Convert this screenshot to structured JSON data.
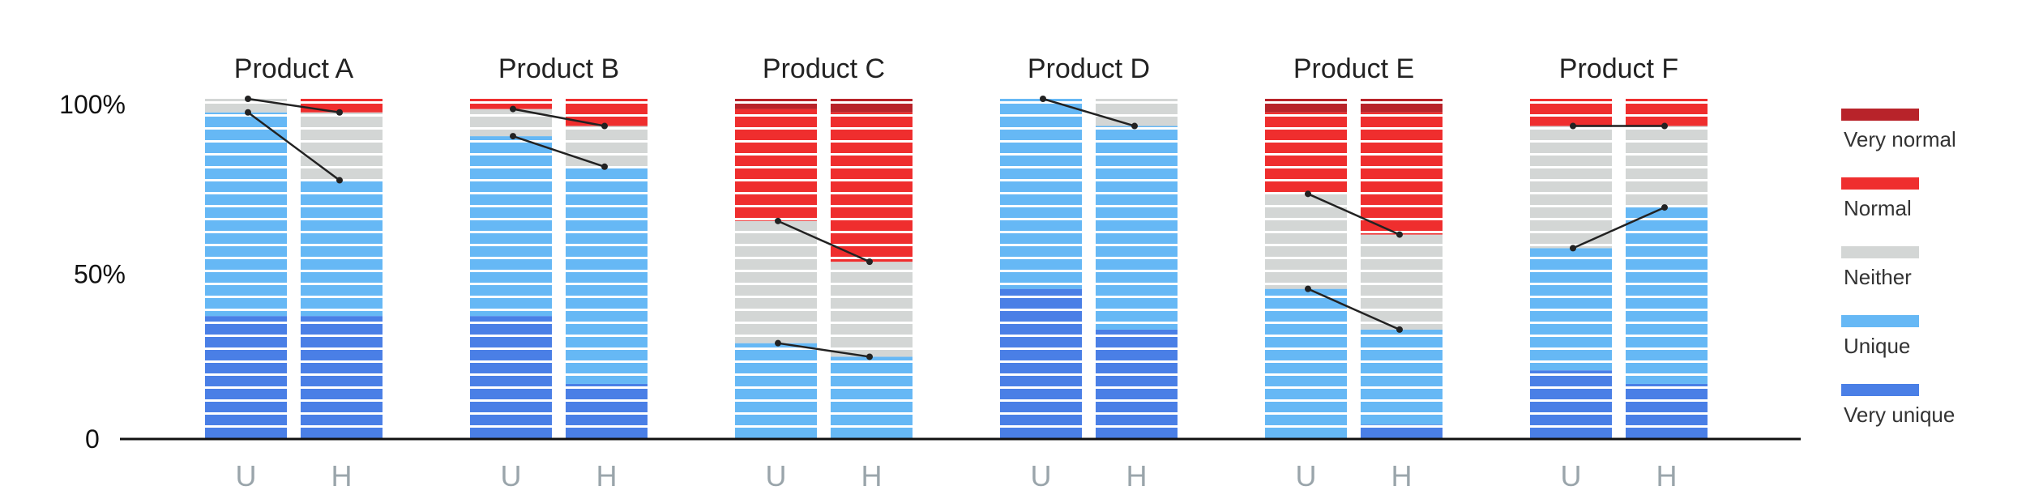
{
  "chart_data": {
    "type": "bar",
    "stacked": true,
    "colors": {
      "very_unique": "#4a7fe6",
      "unique": "#66b8f5",
      "neither": "#d3d6d5",
      "normal": "#ef2e2e",
      "very_normal": "#b8232a",
      "connector": "#222222",
      "stripe": "#ffffff"
    },
    "y_ticks": [
      {
        "value": 0,
        "label": "0"
      },
      {
        "value": 50,
        "label": "50%"
      },
      {
        "value": 100,
        "label": "100%"
      }
    ],
    "ylim": [
      0,
      100
    ],
    "legend": [
      {
        "key": "very_normal",
        "label": "Very normal"
      },
      {
        "key": "normal",
        "label": "Normal"
      },
      {
        "key": "neither",
        "label": "Neither"
      },
      {
        "key": "unique",
        "label": "Unique"
      },
      {
        "key": "very_unique",
        "label": "Very unique"
      }
    ],
    "products": [
      {
        "name": "Product A",
        "bars": [
          {
            "label": "U",
            "very_unique": 36,
            "unique": 60,
            "neither": 4,
            "normal": 0,
            "very_normal": 0
          },
          {
            "label": "H",
            "very_unique": 36,
            "unique": 40,
            "neither": 20,
            "normal": 4,
            "very_normal": 0
          }
        ]
      },
      {
        "name": "Product B",
        "bars": [
          {
            "label": "U",
            "very_unique": 36,
            "unique": 53,
            "neither": 8,
            "normal": 3,
            "very_normal": 0
          },
          {
            "label": "H",
            "very_unique": 16,
            "unique": 64,
            "neither": 12,
            "normal": 8,
            "very_normal": 0
          }
        ]
      },
      {
        "name": "Product C",
        "bars": [
          {
            "label": "U",
            "very_unique": 0,
            "unique": 28,
            "neither": 36,
            "normal": 33,
            "very_normal": 3
          },
          {
            "label": "H",
            "very_unique": 0,
            "unique": 24,
            "neither": 28,
            "normal": 44,
            "very_normal": 4
          }
        ]
      },
      {
        "name": "Product D",
        "bars": [
          {
            "label": "U",
            "very_unique": 44,
            "unique": 56,
            "neither": 0,
            "normal": 0,
            "very_normal": 0
          },
          {
            "label": "H",
            "very_unique": 32,
            "unique": 60,
            "neither": 8,
            "normal": 0,
            "very_normal": 0
          }
        ]
      },
      {
        "name": "Product E",
        "bars": [
          {
            "label": "U",
            "very_unique": 0,
            "unique": 44,
            "neither": 28,
            "normal": 24,
            "very_normal": 4
          },
          {
            "label": "H",
            "very_unique": 4,
            "unique": 28,
            "neither": 28,
            "normal": 36,
            "very_normal": 4
          }
        ]
      },
      {
        "name": "Product F",
        "bars": [
          {
            "label": "U",
            "very_unique": 20,
            "unique": 36,
            "neither": 36,
            "normal": 8,
            "very_normal": 0
          },
          {
            "label": "H",
            "very_unique": 16,
            "unique": 52,
            "neither": 24,
            "normal": 8,
            "very_normal": 0
          }
        ]
      }
    ],
    "connectors": [
      {
        "product": 0,
        "from": 100,
        "to": 96
      },
      {
        "product": 0,
        "from": 96,
        "to": 76
      },
      {
        "product": 1,
        "from": 97,
        "to": 92
      },
      {
        "product": 1,
        "from": 89,
        "to": 80
      },
      {
        "product": 2,
        "from": 64,
        "to": 52
      },
      {
        "product": 2,
        "from": 28,
        "to": 24
      },
      {
        "product": 3,
        "from": 100,
        "to": 92
      },
      {
        "product": 4,
        "from": 72,
        "to": 60
      },
      {
        "product": 4,
        "from": 44,
        "to": 32
      },
      {
        "product": 5,
        "from": 92,
        "to": 92
      },
      {
        "product": 5,
        "from": 56,
        "to": 68
      }
    ]
  }
}
